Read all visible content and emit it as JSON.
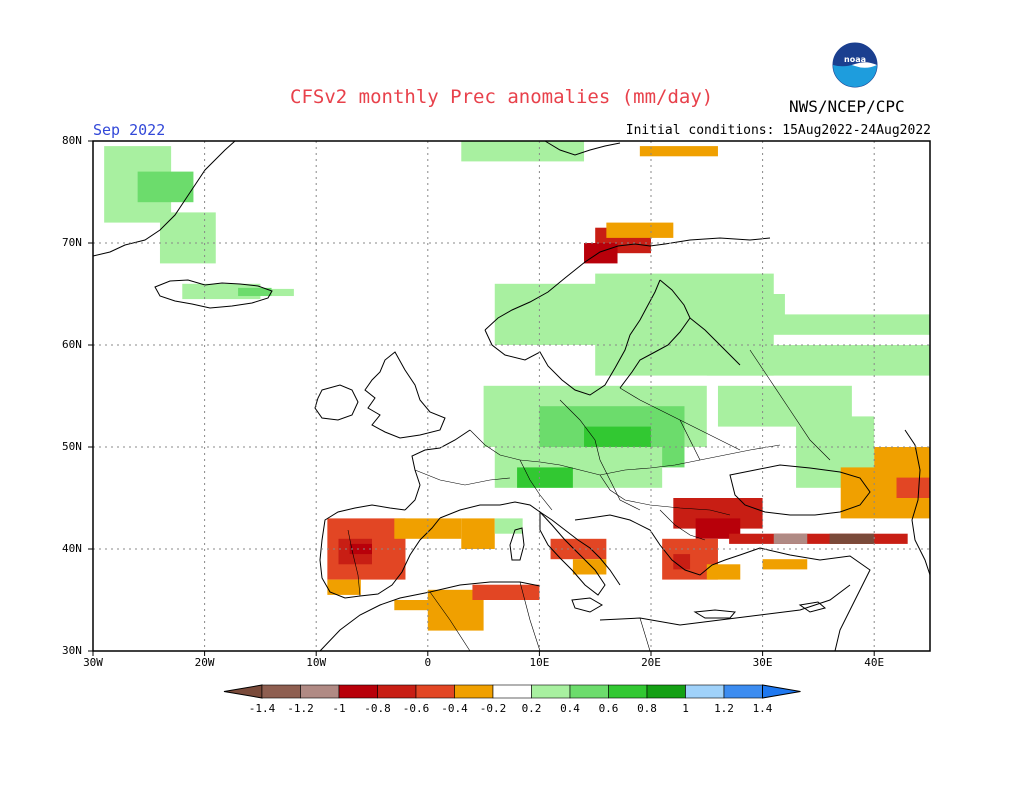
{
  "header": {
    "title": "CFSv2 monthly Prec anomalies (mm/day)",
    "agency": "NWS/NCEP/CPC",
    "period": "Sep 2022",
    "initial_conditions": "Initial conditions: 15Aug2022-24Aug2022",
    "logo_icon": "noaa-logo-icon"
  },
  "axes": {
    "lat_labels": [
      "80N",
      "70N",
      "60N",
      "50N",
      "40N",
      "30N"
    ],
    "lon_labels": [
      "30W",
      "20W",
      "10W",
      "0",
      "10E",
      "20E",
      "30E",
      "40E"
    ]
  },
  "colorbar": {
    "labels": [
      "-1.4",
      "-1.2",
      "-1",
      "-0.8",
      "-0.6",
      "-0.4",
      "-0.2",
      "0.2",
      "0.4",
      "0.6",
      "0.8",
      "1",
      "1.2",
      "1.4"
    ],
    "colors": [
      "#7a4a3a",
      "#8e5e50",
      "#b08a84",
      "#b8000a",
      "#c81e14",
      "#e24624",
      "#f0a000",
      "#ffffff",
      "#a8f0a0",
      "#6cdc6c",
      "#32c832",
      "#14a014",
      "#a0d2fa",
      "#3c8cf0",
      "#1e78f0"
    ]
  },
  "chart_data": {
    "type": "heatmap",
    "title": "CFSv2 monthly Prec anomalies (mm/day)",
    "variable": "precipitation anomaly",
    "units": "mm/day",
    "lon_range": [
      -30,
      45
    ],
    "lat_range": [
      30,
      80
    ],
    "grid": true,
    "regions": [
      {
        "area": "Greenland east coast",
        "anomaly_range": [
          0.2,
          0.4
        ]
      },
      {
        "area": "Iceland east",
        "anomaly_range": [
          0.2,
          0.4
        ]
      },
      {
        "area": "Svalbard south / Barents",
        "anomaly_range": [
          0.2,
          0.4
        ]
      },
      {
        "area": "Northern Norway coast",
        "anomaly_range": [
          -0.8,
          -0.4
        ]
      },
      {
        "area": "Scandinavia / Baltic",
        "anomaly_range": [
          0.2,
          0.4
        ]
      },
      {
        "area": "Central Europe (Germany, Poland, Czechia, Austria)",
        "anomaly_range": [
          0.2,
          0.6
        ]
      },
      {
        "area": "Western Russia",
        "anomaly_range": [
          0.2,
          0.4
        ]
      },
      {
        "area": "Iberian Peninsula west",
        "anomaly_range": [
          -0.8,
          -0.2
        ]
      },
      {
        "area": "Northwest Africa (Algeria, Tunisia coast)",
        "anomaly_range": [
          -0.6,
          -0.2
        ]
      },
      {
        "area": "Southern Italy / Sicily",
        "anomaly_range": [
          -0.6,
          -0.2
        ]
      },
      {
        "area": "Balkans (Romania, Bulgaria, Greece)",
        "anomaly_range": [
          -1.0,
          -0.2
        ]
      },
      {
        "area": "Turkey / Black Sea south",
        "anomaly_range": [
          -1.4,
          -0.4
        ]
      },
      {
        "area": "Caucasus / Ukraine east",
        "anomaly_range": [
          -0.6,
          -0.2
        ]
      }
    ]
  }
}
